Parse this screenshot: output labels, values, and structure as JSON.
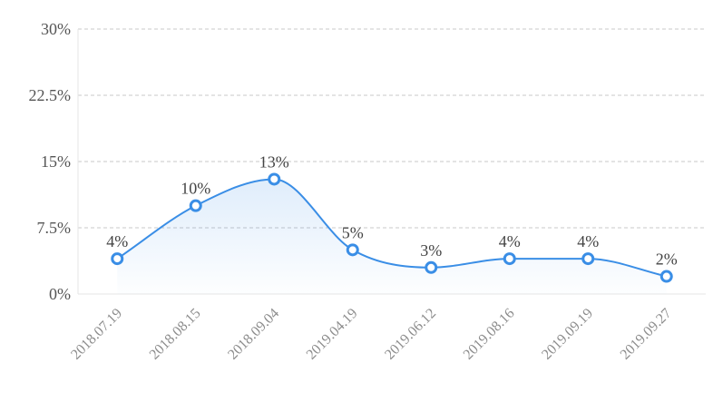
{
  "chart_data": {
    "type": "line",
    "title": "",
    "xlabel": "",
    "ylabel": "",
    "x": [
      "2018.07.19",
      "2018.08.15",
      "2018.09.04",
      "2019.04.19",
      "2019.06.12",
      "2019.08.16",
      "2019.09.19",
      "2019.09.27"
    ],
    "series": [
      {
        "values": [
          4,
          10,
          13,
          5,
          3,
          4,
          4,
          2
        ],
        "data_labels": [
          "4%",
          "10%",
          "13%",
          "5%",
          "3%",
          "4%",
          "4%",
          "2%"
        ],
        "color": "#3a8ee6"
      }
    ],
    "ylim": [
      0,
      30
    ],
    "yticks": [
      0,
      7.5,
      15,
      22.5,
      30
    ],
    "ytick_labels": [
      "0%",
      "7.5%",
      "15%",
      "22.5%",
      "30%"
    ],
    "grid": true,
    "smooth": true,
    "area_fill": true
  }
}
